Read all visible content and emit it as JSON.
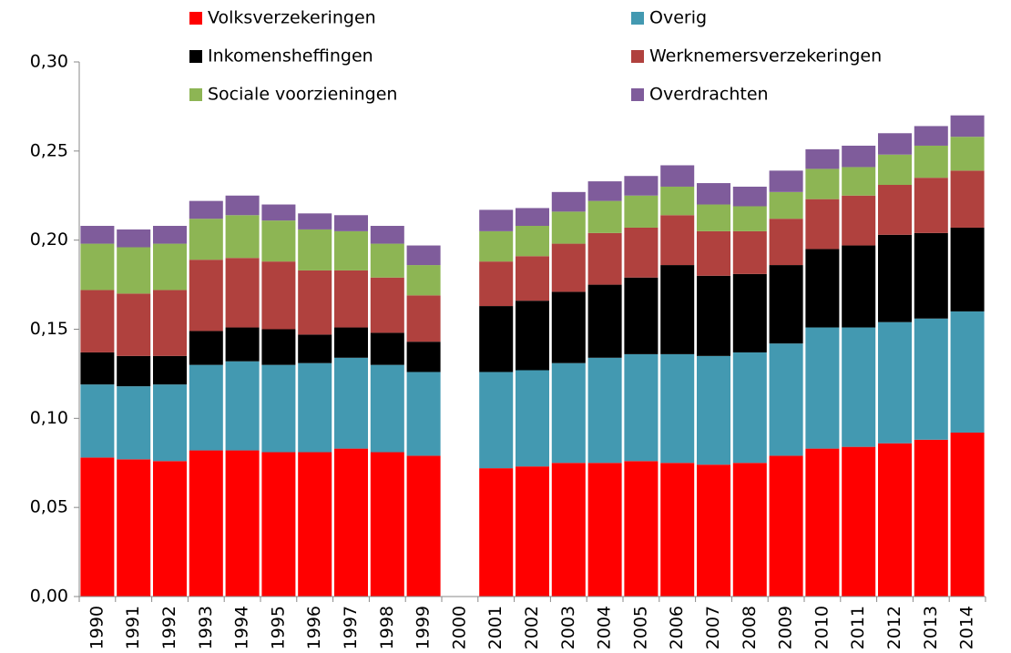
{
  "chart_data": {
    "type": "stacked-bar",
    "categories": [
      "1990",
      "1991",
      "1992",
      "1993",
      "1994",
      "1995",
      "1996",
      "1997",
      "1998",
      "1999",
      "2000",
      "2001",
      "2002",
      "2003",
      "2004",
      "2005",
      "2006",
      "2007",
      "2008",
      "2009",
      "2010",
      "2011",
      "2012",
      "2013",
      "2014"
    ],
    "series": [
      {
        "name": "Volksverzekeringen",
        "color": "#ff0000",
        "values": [
          0.078,
          0.077,
          0.076,
          0.082,
          0.082,
          0.081,
          0.081,
          0.083,
          0.081,
          0.079,
          null,
          0.072,
          0.073,
          0.075,
          0.075,
          0.076,
          0.075,
          0.074,
          0.075,
          0.079,
          0.083,
          0.084,
          0.086,
          0.088,
          0.092
        ]
      },
      {
        "name": "Overig",
        "color": "#4399b1",
        "values": [
          0.041,
          0.041,
          0.043,
          0.048,
          0.05,
          0.049,
          0.05,
          0.051,
          0.049,
          0.047,
          null,
          0.054,
          0.054,
          0.056,
          0.059,
          0.06,
          0.061,
          0.061,
          0.062,
          0.063,
          0.068,
          0.067,
          0.068,
          0.068,
          0.068
        ]
      },
      {
        "name": "Inkomensheffingen",
        "color": "#000000",
        "values": [
          0.018,
          0.017,
          0.016,
          0.019,
          0.019,
          0.02,
          0.016,
          0.017,
          0.018,
          0.017,
          null,
          0.037,
          0.039,
          0.04,
          0.041,
          0.043,
          0.05,
          0.045,
          0.044,
          0.044,
          0.044,
          0.046,
          0.049,
          0.048,
          0.047
        ]
      },
      {
        "name": "Werknemersverzekeringen",
        "color": "#b0413e",
        "values": [
          0.035,
          0.035,
          0.037,
          0.04,
          0.039,
          0.038,
          0.036,
          0.032,
          0.031,
          0.026,
          null,
          0.025,
          0.025,
          0.027,
          0.029,
          0.028,
          0.028,
          0.025,
          0.024,
          0.026,
          0.028,
          0.028,
          0.028,
          0.031,
          0.032
        ]
      },
      {
        "name": "Sociale voorzieningen",
        "color": "#8db554",
        "values": [
          0.026,
          0.026,
          0.026,
          0.023,
          0.024,
          0.023,
          0.023,
          0.022,
          0.019,
          0.017,
          null,
          0.017,
          0.017,
          0.018,
          0.018,
          0.018,
          0.016,
          0.015,
          0.014,
          0.015,
          0.017,
          0.016,
          0.017,
          0.018,
          0.019
        ]
      },
      {
        "name": "Overdrachten",
        "color": "#7f5c9b",
        "values": [
          0.01,
          0.01,
          0.01,
          0.01,
          0.011,
          0.009,
          0.009,
          0.009,
          0.01,
          0.011,
          null,
          0.012,
          0.01,
          0.011,
          0.011,
          0.011,
          0.012,
          0.012,
          0.011,
          0.012,
          0.011,
          0.012,
          0.012,
          0.011,
          0.012
        ]
      }
    ],
    "ylim": [
      0,
      0.3
    ],
    "yticks": [
      {
        "value": 0,
        "label": "0,00"
      },
      {
        "value": 0.05,
        "label": "0,05"
      },
      {
        "value": 0.1,
        "label": "0,10"
      },
      {
        "value": 0.15,
        "label": "0,15"
      },
      {
        "value": 0.2,
        "label": "0,20"
      },
      {
        "value": 0.25,
        "label": "0,25"
      },
      {
        "value": 0.3,
        "label": "0,30"
      }
    ],
    "grid": false,
    "legend": "top"
  }
}
